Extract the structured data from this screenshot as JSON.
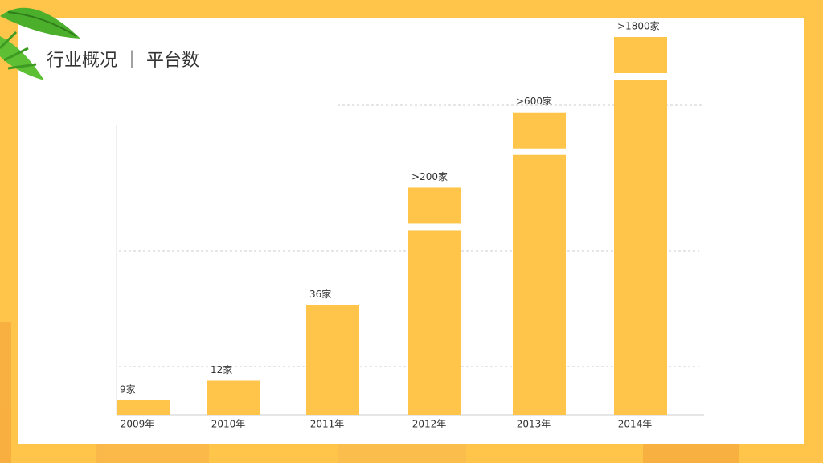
{
  "chart_data": {
    "type": "bar",
    "title": "行业概况 ｜ 平台数",
    "categories": [
      "2009年",
      "2010年",
      "2011年",
      "2012年",
      "2013年",
      "2014年"
    ],
    "values": [
      9,
      12,
      36,
      200,
      600,
      1800
    ],
    "value_labels": [
      "9家",
      "12家",
      "36家",
      ">200家",
      ">600家",
      ">1800家"
    ],
    "color": "#ffc54a"
  }
}
